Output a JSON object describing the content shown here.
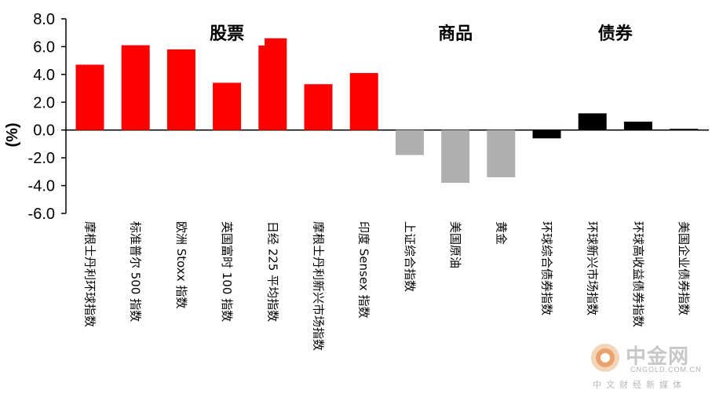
{
  "chart_data": {
    "type": "bar",
    "ylabel": "(%)",
    "ylim": [
      -6.0,
      8.0
    ],
    "yticks": [
      "8.0",
      "6.0",
      "4.0",
      "2.0",
      "0.0",
      "-2.0",
      "-4.0",
      "-6.0"
    ],
    "groups": [
      {
        "label": "股票",
        "start": 0,
        "end": 6
      },
      {
        "label": "商品",
        "start": 7,
        "end": 9
      },
      {
        "label": "债券",
        "start": 10,
        "end": 13
      }
    ],
    "categories": [
      "摩根士丹利环球指数",
      "标准普尔 500 指数",
      "欧洲 Stoxx 指数",
      "英国富时 100 指数",
      "日经 225 平均指数",
      "摩根士丹利新兴市场指数",
      "印度 Sensex 指数",
      "上证综合指数",
      "美国原油",
      "黄金",
      "环球综合债券指数",
      "环球新兴市场指数",
      "环球高收益债券指数",
      "美国企业债券指数"
    ],
    "values": [
      4.7,
      6.1,
      5.8,
      3.4,
      6.6,
      3.3,
      4.1,
      -1.8,
      -3.8,
      -3.4,
      -0.6,
      1.2,
      0.6,
      0.05
    ],
    "colors": {
      "equity": "#ff0000",
      "commodity": "#b0b0b0",
      "bond": "#000000"
    }
  },
  "watermark": {
    "name": "中金网",
    "domain": "CNGOLD.COM.CN",
    "subtitle": "中文财经新媒体"
  }
}
